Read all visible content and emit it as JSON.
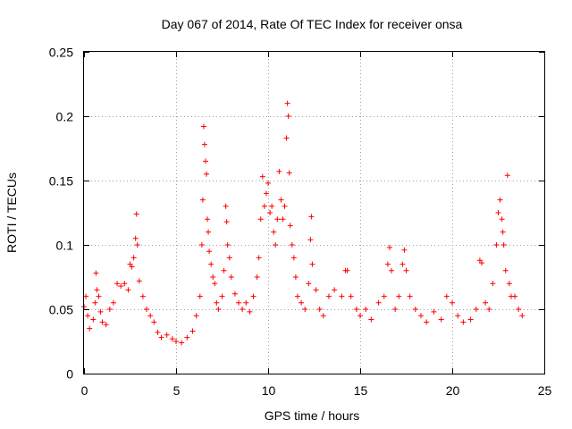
{
  "chart_data": {
    "type": "scatter",
    "title": "Day 067 of 2014, Rate Of TEC Index for receiver onsa",
    "xlabel": "GPS time / hours",
    "ylabel": "ROTI / TECUs",
    "xlim": [
      0,
      25
    ],
    "ylim": [
      0,
      0.25
    ],
    "xticks": [
      0,
      5,
      10,
      15,
      20,
      25
    ],
    "xtick_labels": [
      "0",
      "5",
      "10",
      "15",
      "20",
      "25"
    ],
    "yticks": [
      0,
      0.05,
      0.1,
      0.15,
      0.2,
      0.25
    ],
    "ytick_labels": [
      "0",
      "0.05",
      "0.1",
      "0.15",
      "0.2",
      "0.25"
    ],
    "grid": true,
    "marker": "+",
    "series": [
      {
        "name": "ROTI",
        "color": "#ff0000",
        "points": [
          [
            0.0,
            0.052
          ],
          [
            0.1,
            0.06
          ],
          [
            0.2,
            0.045
          ],
          [
            0.3,
            0.035
          ],
          [
            0.5,
            0.042
          ],
          [
            0.6,
            0.055
          ],
          [
            0.65,
            0.078
          ],
          [
            0.7,
            0.065
          ],
          [
            0.8,
            0.06
          ],
          [
            0.9,
            0.048
          ],
          [
            1.0,
            0.04
          ],
          [
            1.2,
            0.038
          ],
          [
            1.4,
            0.05
          ],
          [
            1.6,
            0.055
          ],
          [
            1.8,
            0.07
          ],
          [
            2.0,
            0.068
          ],
          [
            2.2,
            0.07
          ],
          [
            2.4,
            0.065
          ],
          [
            2.5,
            0.085
          ],
          [
            2.6,
            0.083
          ],
          [
            2.7,
            0.09
          ],
          [
            2.8,
            0.105
          ],
          [
            2.85,
            0.124
          ],
          [
            2.9,
            0.1
          ],
          [
            3.0,
            0.072
          ],
          [
            3.2,
            0.06
          ],
          [
            3.4,
            0.05
          ],
          [
            3.6,
            0.045
          ],
          [
            3.8,
            0.04
          ],
          [
            4.0,
            0.032
          ],
          [
            4.2,
            0.028
          ],
          [
            4.5,
            0.03
          ],
          [
            4.8,
            0.027
          ],
          [
            5.0,
            0.025
          ],
          [
            5.3,
            0.024
          ],
          [
            5.6,
            0.028
          ],
          [
            5.9,
            0.033
          ],
          [
            6.1,
            0.045
          ],
          [
            6.3,
            0.06
          ],
          [
            6.4,
            0.1
          ],
          [
            6.45,
            0.135
          ],
          [
            6.5,
            0.192
          ],
          [
            6.55,
            0.178
          ],
          [
            6.6,
            0.165
          ],
          [
            6.65,
            0.155
          ],
          [
            6.7,
            0.12
          ],
          [
            6.75,
            0.11
          ],
          [
            6.8,
            0.095
          ],
          [
            6.9,
            0.085
          ],
          [
            7.0,
            0.075
          ],
          [
            7.1,
            0.07
          ],
          [
            7.2,
            0.055
          ],
          [
            7.3,
            0.05
          ],
          [
            7.5,
            0.06
          ],
          [
            7.6,
            0.08
          ],
          [
            7.7,
            0.13
          ],
          [
            7.75,
            0.118
          ],
          [
            7.8,
            0.1
          ],
          [
            7.9,
            0.09
          ],
          [
            8.0,
            0.075
          ],
          [
            8.2,
            0.062
          ],
          [
            8.4,
            0.055
          ],
          [
            8.6,
            0.05
          ],
          [
            8.8,
            0.055
          ],
          [
            9.0,
            0.048
          ],
          [
            9.2,
            0.06
          ],
          [
            9.4,
            0.075
          ],
          [
            9.5,
            0.09
          ],
          [
            9.6,
            0.12
          ],
          [
            9.7,
            0.153
          ],
          [
            9.8,
            0.13
          ],
          [
            9.9,
            0.14
          ],
          [
            10.0,
            0.148
          ],
          [
            10.1,
            0.125
          ],
          [
            10.2,
            0.13
          ],
          [
            10.3,
            0.11
          ],
          [
            10.4,
            0.1
          ],
          [
            10.5,
            0.12
          ],
          [
            10.6,
            0.157
          ],
          [
            10.7,
            0.135
          ],
          [
            10.8,
            0.12
          ],
          [
            10.9,
            0.13
          ],
          [
            11.0,
            0.183
          ],
          [
            11.05,
            0.21
          ],
          [
            11.1,
            0.2
          ],
          [
            11.15,
            0.156
          ],
          [
            11.2,
            0.115
          ],
          [
            11.3,
            0.1
          ],
          [
            11.4,
            0.09
          ],
          [
            11.5,
            0.075
          ],
          [
            11.6,
            0.06
          ],
          [
            11.8,
            0.055
          ],
          [
            12.0,
            0.05
          ],
          [
            12.2,
            0.07
          ],
          [
            12.3,
            0.104
          ],
          [
            12.35,
            0.122
          ],
          [
            12.4,
            0.085
          ],
          [
            12.6,
            0.065
          ],
          [
            12.8,
            0.05
          ],
          [
            13.0,
            0.045
          ],
          [
            13.3,
            0.06
          ],
          [
            13.6,
            0.065
          ],
          [
            14.0,
            0.06
          ],
          [
            14.2,
            0.08
          ],
          [
            14.3,
            0.08
          ],
          [
            14.5,
            0.06
          ],
          [
            14.8,
            0.05
          ],
          [
            15.0,
            0.045
          ],
          [
            15.3,
            0.05
          ],
          [
            15.6,
            0.042
          ],
          [
            16.0,
            0.055
          ],
          [
            16.3,
            0.06
          ],
          [
            16.5,
            0.085
          ],
          [
            16.6,
            0.098
          ],
          [
            16.7,
            0.08
          ],
          [
            16.9,
            0.05
          ],
          [
            17.1,
            0.06
          ],
          [
            17.3,
            0.085
          ],
          [
            17.4,
            0.096
          ],
          [
            17.5,
            0.08
          ],
          [
            17.7,
            0.06
          ],
          [
            18.0,
            0.05
          ],
          [
            18.3,
            0.045
          ],
          [
            18.6,
            0.04
          ],
          [
            19.0,
            0.048
          ],
          [
            19.4,
            0.042
          ],
          [
            19.7,
            0.06
          ],
          [
            20.0,
            0.055
          ],
          [
            20.3,
            0.045
          ],
          [
            20.6,
            0.04
          ],
          [
            21.0,
            0.042
          ],
          [
            21.3,
            0.05
          ],
          [
            21.5,
            0.088
          ],
          [
            21.6,
            0.086
          ],
          [
            21.8,
            0.055
          ],
          [
            22.0,
            0.05
          ],
          [
            22.2,
            0.07
          ],
          [
            22.4,
            0.1
          ],
          [
            22.5,
            0.125
          ],
          [
            22.6,
            0.135
          ],
          [
            22.7,
            0.12
          ],
          [
            22.75,
            0.11
          ],
          [
            22.8,
            0.1
          ],
          [
            22.9,
            0.08
          ],
          [
            23.0,
            0.154
          ],
          [
            23.1,
            0.07
          ],
          [
            23.2,
            0.06
          ],
          [
            23.4,
            0.06
          ],
          [
            23.6,
            0.05
          ],
          [
            23.8,
            0.045
          ]
        ]
      }
    ]
  }
}
